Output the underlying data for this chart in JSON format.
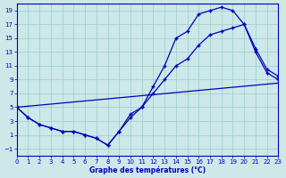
{
  "xlabel": "Graphe des températures (°C)",
  "bg_color": "#cce8e8",
  "line_color": "#0000bb",
  "grid_color": "#99cccc",
  "xlim": [
    0,
    23
  ],
  "ylim": [
    -2,
    20
  ],
  "xticks": [
    0,
    1,
    2,
    3,
    4,
    5,
    6,
    7,
    8,
    9,
    10,
    11,
    12,
    13,
    14,
    15,
    16,
    17,
    18,
    19,
    20,
    21,
    22,
    23
  ],
  "yticks": [
    -1,
    1,
    3,
    5,
    7,
    9,
    11,
    13,
    15,
    17,
    19
  ],
  "line1_x": [
    0,
    1,
    2,
    3,
    4,
    5,
    6,
    7,
    8,
    9,
    10,
    11,
    12,
    13,
    14,
    15,
    16,
    17,
    18,
    19,
    20,
    21,
    22,
    23
  ],
  "line1_y": [
    5,
    3.5,
    2.5,
    2,
    1.5,
    1.5,
    1,
    0.5,
    -0.5,
    1.5,
    4,
    5,
    8,
    11,
    15,
    16,
    18.5,
    19,
    19.5,
    19,
    17,
    13,
    10,
    9
  ],
  "line2_x": [
    0,
    1,
    2,
    3,
    4,
    5,
    6,
    7,
    8,
    9,
    10,
    11,
    12,
    13,
    14,
    15,
    16,
    17,
    18,
    19,
    20,
    21,
    22,
    23
  ],
  "line2_y": [
    5,
    3.5,
    2.5,
    2,
    1.5,
    1.5,
    1,
    0.5,
    -0.5,
    1.5,
    3.5,
    5,
    7,
    9,
    11,
    12,
    14,
    15.5,
    16,
    16.5,
    17,
    13.5,
    10.5,
    9.5
  ],
  "line3_x": [
    0,
    23
  ],
  "line3_y": [
    5,
    8.5
  ]
}
